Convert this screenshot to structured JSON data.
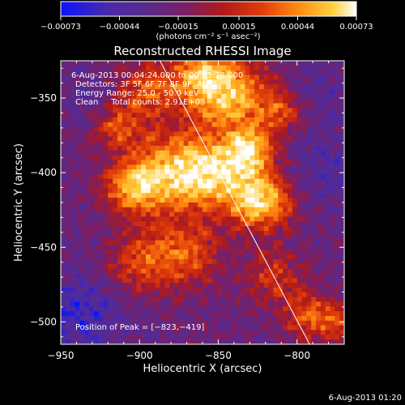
{
  "chart_data": {
    "type": "heatmap",
    "title": "Reconstructed RHESSI Image",
    "xlabel": "Heliocentric X (arcsec)",
    "ylabel": "Heliocentric Y (arcsec)",
    "xlim": [
      -950,
      -770
    ],
    "ylim": [
      -515,
      -325
    ],
    "x_ticks": [
      -950,
      -900,
      -850,
      -800
    ],
    "x_tick_labels": [
      "−950",
      "−900",
      "−850",
      "−800"
    ],
    "y_ticks": [
      -500,
      -450,
      -400,
      -350
    ],
    "y_tick_labels": [
      "−500",
      "−450",
      "−400",
      "−350"
    ],
    "colorbar": {
      "min": -0.00073,
      "max": 0.00073,
      "ticks": [
        -0.00073,
        -0.00044,
        -0.00015,
        0.00015,
        0.00044,
        0.00073
      ],
      "tick_labels": [
        "−0.00073",
        "−0.00044",
        "−0.00015",
        "0.00015",
        "0.00044",
        "0.00073"
      ],
      "units_label": "(photons cm⁻² s⁻¹ asec⁻²)",
      "colors": [
        "#0a14ff",
        "#4a2aa8",
        "#5a2a8a",
        "#7a1e66",
        "#b01a1a",
        "#e03c0a",
        "#ff8a10",
        "#ffd040",
        "#ffffff"
      ]
    },
    "peak": {
      "x": -823,
      "y": -419
    },
    "limb_line": [
      [
        -887,
        -325
      ],
      [
        -792,
        -515
      ]
    ]
  },
  "annotations": {
    "time_range": "6-Aug-2013 00:04:24.000 to 00:05:28.000",
    "detectors": "Detectors: 3F 5F 6F 7F 8F 9F, Att 0",
    "energy_range": "Energy Range: 25.0 - 50.0 keV",
    "method_counts": "Clean     Total counts: 2.91E+03",
    "peak_position": "Position of Peak = [−823,−419]"
  },
  "footer": {
    "timestamp": "6-Aug-2013 01:20"
  }
}
